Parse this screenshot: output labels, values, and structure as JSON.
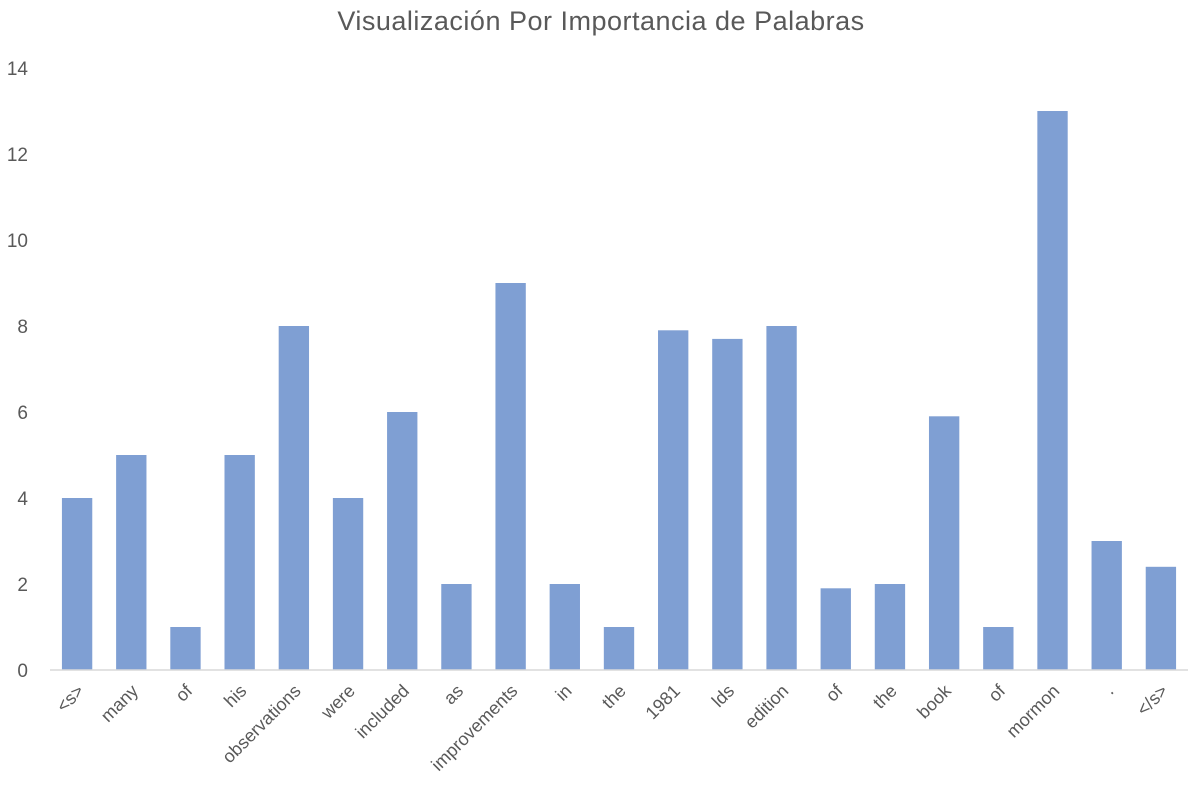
{
  "chart_data": {
    "type": "bar",
    "title": "Visualización Por Importancia de Palabras",
    "xlabel": "",
    "ylabel": "",
    "categories": [
      "<s>",
      "many",
      "of",
      "his",
      "observations",
      "were",
      "included",
      "as",
      "improvements",
      "in",
      "the",
      "1981",
      "lds",
      "edition",
      "of",
      "the",
      "book",
      "of",
      "mormon",
      ".",
      "</s>"
    ],
    "values": [
      4,
      5,
      1,
      5,
      8,
      4,
      6,
      2,
      9,
      2,
      1,
      7.9,
      7.7,
      8,
      1.9,
      2,
      5.9,
      1,
      13,
      3,
      2.4
    ],
    "ylim": [
      0,
      14
    ],
    "yticks": [
      0,
      2,
      4,
      6,
      8,
      10,
      12,
      14
    ],
    "grid": false,
    "legend": "none",
    "colors": {
      "bar": "#7f9fd3",
      "axis": "#d9d9d9",
      "text": "#595959"
    }
  }
}
